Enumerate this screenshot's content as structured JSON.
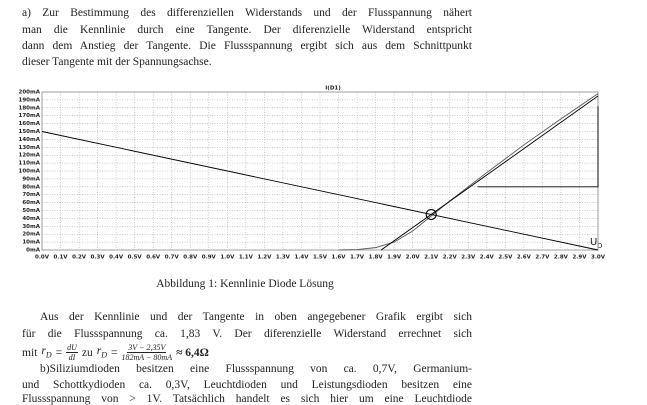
{
  "document": {
    "intro": [
      "a) Zur Bestimmung des differenziellen Widerstands und der Flusspannung nähert",
      "man die Kennlinie durch eine Tangente. Der diferenzielle Widerstand entspricht",
      "dann dem Anstieg der Tangente. Die Flussspannung ergibt sich aus dem Schnittpunkt",
      "dieser Tangente mit der Spannungsachse."
    ],
    "caption": "Abbildung 1: Kennlinie Diode Lösung",
    "paragraph": [
      "Aus der Kennlinie und der Tangente in oben angegebener Grafik ergibt sich",
      "für die Flussspannung ca. 1,83 V. Der diferenzielle Widerstand errechnet sich",
      "b)Siliziumdioden besitzen eine Flussspannung von ca. 0,7V, Germanium-",
      "und Schottkydioden ca. 0,3V, Leuchtdioden und Leistungsdioden besitzen eine",
      "Flussspannung von > 1V. Tatsächlich handelt es sich hier um eine Leuchtdiode"
    ],
    "formula": {
      "prefix": "mit",
      "symbol": "r",
      "sub": "D",
      "eq": "=",
      "num1": "dU",
      "den1": "dI",
      "mid": "zu",
      "num2": "3V − 2,35V",
      "den2": "182mA − 80mA",
      "result": "≈ 6,4Ω"
    }
  },
  "chart_data": {
    "type": "line",
    "title": "I(D1)",
    "annotation": {
      "text": "U",
      "sub": "D"
    },
    "xlim": [
      0,
      3.0
    ],
    "ylim": [
      0,
      200
    ],
    "grid": true,
    "xticks": [
      {
        "value": 0,
        "label": "0.0V"
      },
      {
        "value": 0.1,
        "label": "0.1V"
      },
      {
        "value": 0.2,
        "label": "0.2V"
      },
      {
        "value": 0.3,
        "label": "0.3V"
      },
      {
        "value": 0.4,
        "label": "0.4V"
      },
      {
        "value": 0.5,
        "label": "0.5V"
      },
      {
        "value": 0.6,
        "label": "0.6V"
      },
      {
        "value": 0.7,
        "label": "0.7V"
      },
      {
        "value": 0.8,
        "label": "0.8V"
      },
      {
        "value": 0.9,
        "label": "0.9V"
      },
      {
        "value": 1.0,
        "label": "1.0V"
      },
      {
        "value": 1.1,
        "label": "1.1V"
      },
      {
        "value": 1.2,
        "label": "1.2V"
      },
      {
        "value": 1.3,
        "label": "1.3V"
      },
      {
        "value": 1.4,
        "label": "1.4V"
      },
      {
        "value": 1.5,
        "label": "1.5V"
      },
      {
        "value": 1.6,
        "label": "1.6V"
      },
      {
        "value": 1.7,
        "label": "1.7V"
      },
      {
        "value": 1.8,
        "label": "1.8V"
      },
      {
        "value": 1.9,
        "label": "1.9V"
      },
      {
        "value": 2.0,
        "label": "2.0V"
      },
      {
        "value": 2.1,
        "label": "2.1V"
      },
      {
        "value": 2.2,
        "label": "2.2V"
      },
      {
        "value": 2.3,
        "label": "2.3V"
      },
      {
        "value": 2.4,
        "label": "2.4V"
      },
      {
        "value": 2.5,
        "label": "2.5V"
      },
      {
        "value": 2.6,
        "label": "2.6V"
      },
      {
        "value": 2.7,
        "label": "2.7V"
      },
      {
        "value": 2.8,
        "label": "2.8V"
      },
      {
        "value": 2.9,
        "label": "2.9V"
      },
      {
        "value": 3.0,
        "label": "3.0V"
      }
    ],
    "yticks": [
      {
        "value": 0,
        "label": "0mA"
      },
      {
        "value": 10,
        "label": "10mA"
      },
      {
        "value": 20,
        "label": "20mA"
      },
      {
        "value": 30,
        "label": "30mA"
      },
      {
        "value": 40,
        "label": "40mA"
      },
      {
        "value": 50,
        "label": "50mA"
      },
      {
        "value": 60,
        "label": "60mA"
      },
      {
        "value": 70,
        "label": "70mA"
      },
      {
        "value": 80,
        "label": "80mA"
      },
      {
        "value": 90,
        "label": "90mA"
      },
      {
        "value": 100,
        "label": "100mA"
      },
      {
        "value": 110,
        "label": "110mA"
      },
      {
        "value": 120,
        "label": "120mA"
      },
      {
        "value": 130,
        "label": "130mA"
      },
      {
        "value": 140,
        "label": "140mA"
      },
      {
        "value": 150,
        "label": "150mA"
      },
      {
        "value": 160,
        "label": "160mA"
      },
      {
        "value": 170,
        "label": "170mA"
      },
      {
        "value": 180,
        "label": "180mA"
      },
      {
        "value": 190,
        "label": "190mA"
      },
      {
        "value": 200,
        "label": "200mA"
      }
    ],
    "series": [
      {
        "color": "#555555",
        "x": [
          1.6,
          1.7,
          1.8,
          1.9,
          2.0,
          2.1,
          2.2,
          2.4,
          2.6,
          2.8,
          3.0
        ],
        "values": [
          0,
          0.5,
          3,
          10,
          24,
          43,
          62,
          98,
          133,
          166,
          198
        ]
      },
      {
        "color": "#000000",
        "x": [
          1.83,
          3.0
        ],
        "values": [
          0,
          195
        ]
      },
      {
        "color": "#000000",
        "x": [
          0,
          3.0
        ],
        "values": [
          150,
          0
        ]
      },
      {
        "color": "#000000",
        "x": [
          2.35,
          3.0,
          3.0
        ],
        "values": [
          80,
          80,
          182
        ]
      }
    ],
    "marker": {
      "x": 2.1,
      "y": 45
    }
  }
}
